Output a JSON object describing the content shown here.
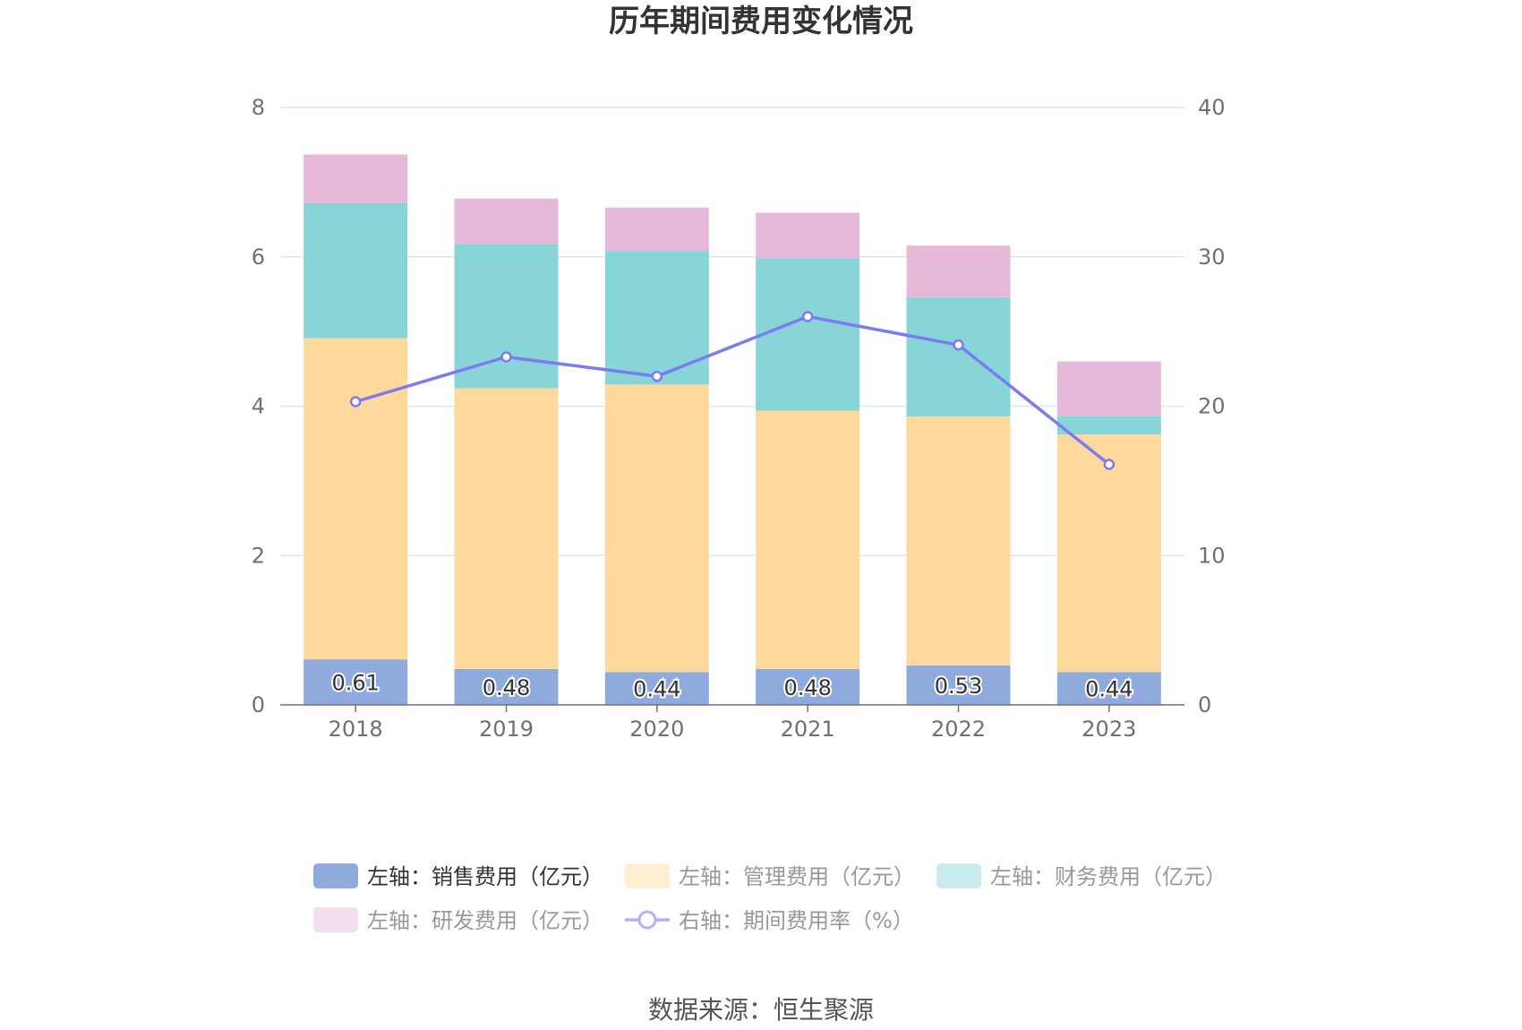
{
  "chart_data": {
    "type": "bar",
    "title": "历年期间费用变化情况",
    "categories": [
      "2018",
      "2019",
      "2020",
      "2021",
      "2022",
      "2023"
    ],
    "left_axis": {
      "min": 0,
      "max": 8,
      "ticks": [
        "0",
        "2",
        "4",
        "6",
        "8"
      ]
    },
    "right_axis": {
      "min": 0,
      "max": 40,
      "ticks": [
        "0",
        "10",
        "20",
        "30",
        "40"
      ]
    },
    "grid": true,
    "stacked": true,
    "series": [
      {
        "name": "左轴：销售费用（亿元）",
        "type": "bar",
        "axis": "left",
        "color": "#8faadc",
        "values": [
          0.61,
          0.48,
          0.44,
          0.48,
          0.53,
          0.44
        ],
        "labels": [
          "0.61",
          "0.48",
          "0.44",
          "0.48",
          "0.53",
          "0.44"
        ]
      },
      {
        "name": "左轴：管理费用（亿元）",
        "type": "bar",
        "axis": "left",
        "color": "#ffd99b",
        "values": [
          4.3,
          3.76,
          3.85,
          3.46,
          3.33,
          3.18
        ]
      },
      {
        "name": "左轴：财务费用（亿元）",
        "type": "bar",
        "axis": "left",
        "color": "#88d5d8",
        "values": [
          1.81,
          1.93,
          1.79,
          2.04,
          1.6,
          0.25
        ]
      },
      {
        "name": "左轴：研发费用（亿元）",
        "type": "bar",
        "axis": "left",
        "color": "#e7b9d9",
        "values": [
          0.65,
          0.61,
          0.58,
          0.61,
          0.69,
          0.73
        ]
      },
      {
        "name": "右轴：期间费用率（%）",
        "type": "line",
        "axis": "right",
        "color": "#7b7bf2",
        "values": [
          20.3,
          23.3,
          22.0,
          26.0,
          24.1,
          16.1
        ]
      }
    ],
    "legend_position": "bottom"
  },
  "source_text": "数据来源：恒生聚源"
}
